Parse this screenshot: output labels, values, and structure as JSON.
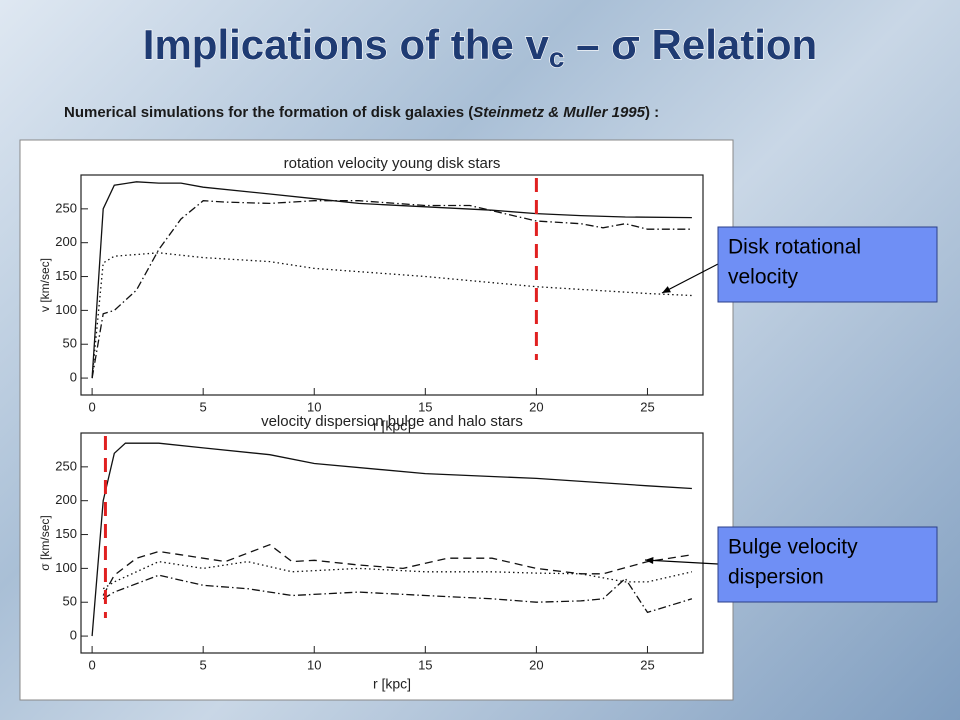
{
  "slide": {
    "title": {
      "main": "Implications of the v",
      "subscript": "c",
      "rest": " – σ  Relation"
    },
    "bullet": {
      "symbol": "",
      "before": "Numerical simulations for the formation of disk galaxies (",
      "italic": "Steinmetz & Muller 1995",
      "after": ") :"
    },
    "callouts": [
      {
        "text": [
          "Disk rotational",
          "velocity"
        ]
      },
      {
        "text": [
          "Bulge velocity",
          "dispersion"
        ]
      }
    ]
  },
  "chart_data": [
    {
      "type": "line",
      "title": "rotation velocity young disk stars",
      "xlabel": "r [kpc]",
      "ylabel": "v [km/sec]",
      "xlim": [
        -0.5,
        27.5
      ],
      "ylim": [
        -25,
        300
      ],
      "xticks": [
        0,
        5,
        10,
        15,
        20,
        25
      ],
      "yticks": [
        0,
        50,
        100,
        150,
        200,
        250
      ],
      "vline": {
        "value": 20,
        "color": "#e02020"
      },
      "series": [
        {
          "color": "#111111",
          "dash": "solid",
          "x": [
            0,
            0.5,
            1,
            2,
            3,
            4,
            5,
            8,
            10,
            12,
            15,
            18,
            20,
            22,
            24,
            27
          ],
          "values": [
            0,
            250,
            285,
            290,
            288,
            288,
            282,
            272,
            265,
            258,
            253,
            248,
            243,
            240,
            238,
            237
          ]
        },
        {
          "color": "#111111",
          "dash": "dashdot",
          "x": [
            0,
            0.5,
            1,
            2,
            3,
            4,
            5,
            6,
            8,
            10,
            12,
            15,
            17,
            20,
            22,
            23,
            24,
            25,
            27
          ],
          "values": [
            0,
            95,
            100,
            130,
            190,
            235,
            262,
            260,
            258,
            262,
            262,
            255,
            255,
            232,
            228,
            222,
            228,
            220,
            220
          ]
        },
        {
          "color": "#111111",
          "dash": "dotted",
          "x": [
            0,
            0.5,
            1,
            3,
            5,
            8,
            10,
            15,
            20,
            25,
            27
          ],
          "values": [
            0,
            170,
            180,
            185,
            178,
            172,
            162,
            150,
            135,
            125,
            122
          ]
        }
      ]
    },
    {
      "type": "line",
      "title": "velocity dispersion bulge and halo stars",
      "xlabel": "r [kpc]",
      "ylabel": "σ [km/sec]",
      "xlim": [
        -0.5,
        27.5
      ],
      "ylim": [
        -25,
        300
      ],
      "xticks": [
        0,
        5,
        10,
        15,
        20,
        25
      ],
      "yticks": [
        0,
        50,
        100,
        150,
        200,
        250
      ],
      "vline": {
        "value": 0.6,
        "color": "#e02020"
      },
      "series": [
        {
          "color": "#111111",
          "dash": "solid",
          "x": [
            0,
            0.5,
            1,
            1.5,
            3,
            5,
            8,
            10,
            15,
            20,
            25,
            27
          ],
          "values": [
            0,
            200,
            270,
            285,
            285,
            278,
            268,
            255,
            240,
            233,
            222,
            218
          ]
        },
        {
          "color": "#111111",
          "dash": "dashed",
          "x": [
            0.5,
            1,
            2,
            3,
            4,
            6,
            8,
            9,
            10,
            12,
            14,
            16,
            18,
            20,
            22,
            23,
            25,
            27
          ],
          "values": [
            60,
            90,
            115,
            125,
            120,
            110,
            135,
            110,
            112,
            105,
            100,
            115,
            115,
            100,
            92,
            92,
            110,
            120
          ]
        },
        {
          "color": "#111111",
          "dash": "dotted",
          "x": [
            0.5,
            1,
            3,
            5,
            7,
            9,
            12,
            15,
            18,
            20,
            22,
            24,
            25,
            27
          ],
          "values": [
            70,
            80,
            110,
            100,
            110,
            95,
            100,
            95,
            95,
            93,
            92,
            80,
            80,
            95
          ]
        },
        {
          "color": "#111111",
          "dash": "dashdot",
          "x": [
            0.5,
            1,
            3,
            5,
            7,
            9,
            12,
            15,
            18,
            20,
            22,
            23,
            24,
            25,
            27
          ],
          "values": [
            55,
            65,
            90,
            75,
            70,
            60,
            65,
            60,
            55,
            50,
            52,
            55,
            85,
            35,
            55
          ]
        }
      ]
    }
  ]
}
